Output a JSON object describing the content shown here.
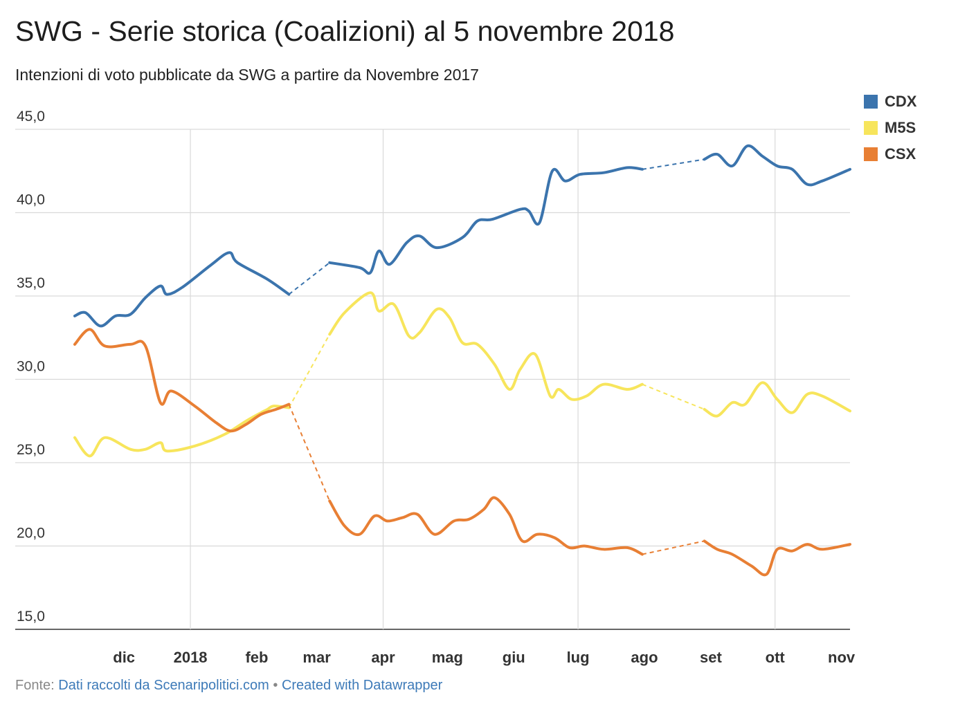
{
  "chart_data": {
    "type": "line",
    "title": "SWG - Serie storica (Coalizioni) al 5 novembre 2018",
    "subtitle": "Intenzioni di voto pubblicate da SWG a partire da Novembre 2017",
    "ylim": [
      15,
      45
    ],
    "yticks": [
      "45,0",
      "40,0",
      "35,0",
      "30,0",
      "25,0",
      "20,0",
      "15,0"
    ],
    "ytick_values": [
      45,
      40,
      35,
      30,
      25,
      20,
      15
    ],
    "xlim": [
      "2017-11-08",
      "2018-11-05"
    ],
    "xticks": [
      {
        "label": "dic",
        "date": "2017-12-01"
      },
      {
        "label": "2018",
        "date": "2018-01-01"
      },
      {
        "label": "feb",
        "date": "2018-02-01"
      },
      {
        "label": "mar",
        "date": "2018-03-01"
      },
      {
        "label": "apr",
        "date": "2018-04-01"
      },
      {
        "label": "mag",
        "date": "2018-05-01"
      },
      {
        "label": "giu",
        "date": "2018-06-01"
      },
      {
        "label": "lug",
        "date": "2018-07-01"
      },
      {
        "label": "ago",
        "date": "2018-08-01"
      },
      {
        "label": "set",
        "date": "2018-09-01"
      },
      {
        "label": "ott",
        "date": "2018-10-01"
      },
      {
        "label": "nov",
        "date": "2018-11-01"
      }
    ],
    "gridlines_x": [
      "2018-01-01",
      "2018-04-01",
      "2018-07-01",
      "2018-10-01"
    ],
    "grid": true,
    "legend_position": "top-right",
    "series": [
      {
        "name": "CDX",
        "color": "#3b74ad",
        "points": [
          [
            "2017-11-08",
            33.8
          ],
          [
            "2017-11-13",
            34.0
          ],
          [
            "2017-11-20",
            33.2
          ],
          [
            "2017-11-27",
            33.8
          ],
          [
            "2017-12-04",
            33.9
          ],
          [
            "2017-12-11",
            34.9
          ],
          [
            "2017-12-18",
            35.6
          ],
          [
            "2017-12-21",
            35.1
          ],
          [
            "2017-12-28",
            35.5
          ],
          [
            "2018-01-10",
            36.8
          ],
          [
            "2018-01-19",
            37.6
          ],
          [
            "2018-01-23",
            37.0
          ],
          [
            "2018-02-06",
            36.0
          ],
          [
            "2018-02-16",
            35.1
          ],
          [
            "2018-03-07",
            37.0
          ],
          [
            "2018-03-21",
            36.7
          ],
          [
            "2018-03-26",
            36.4
          ],
          [
            "2018-03-30",
            37.7
          ],
          [
            "2018-04-04",
            36.9
          ],
          [
            "2018-04-12",
            38.2
          ],
          [
            "2018-04-18",
            38.6
          ],
          [
            "2018-04-26",
            37.9
          ],
          [
            "2018-05-08",
            38.5
          ],
          [
            "2018-05-15",
            39.5
          ],
          [
            "2018-05-22",
            39.6
          ],
          [
            "2018-06-04",
            40.2
          ],
          [
            "2018-06-08",
            40.1
          ],
          [
            "2018-06-13",
            39.4
          ],
          [
            "2018-06-19",
            42.5
          ],
          [
            "2018-06-25",
            41.9
          ],
          [
            "2018-07-02",
            42.3
          ],
          [
            "2018-07-13",
            42.4
          ],
          [
            "2018-07-24",
            42.7
          ],
          [
            "2018-07-31",
            42.6
          ],
          [
            "2018-08-29",
            43.2
          ],
          [
            "2018-09-04",
            43.5
          ],
          [
            "2018-09-11",
            42.8
          ],
          [
            "2018-09-18",
            44.0
          ],
          [
            "2018-09-25",
            43.4
          ],
          [
            "2018-10-02",
            42.8
          ],
          [
            "2018-10-09",
            42.6
          ],
          [
            "2018-10-16",
            41.7
          ],
          [
            "2018-10-23",
            41.9
          ],
          [
            "2018-11-05",
            42.6
          ]
        ],
        "gaps": [
          [
            "2018-02-16",
            "2018-03-07"
          ],
          [
            "2018-07-31",
            "2018-08-29"
          ]
        ]
      },
      {
        "name": "M5S",
        "color": "#f7e55c",
        "points": [
          [
            "2017-11-08",
            26.5
          ],
          [
            "2017-11-15",
            25.4
          ],
          [
            "2017-11-22",
            26.5
          ],
          [
            "2017-12-04",
            25.8
          ],
          [
            "2017-12-11",
            25.8
          ],
          [
            "2017-12-18",
            26.2
          ],
          [
            "2017-12-21",
            25.7
          ],
          [
            "2018-01-03",
            26.0
          ],
          [
            "2018-01-17",
            26.7
          ],
          [
            "2018-01-27",
            27.5
          ],
          [
            "2018-02-03",
            28.0
          ],
          [
            "2018-02-06",
            28.2
          ],
          [
            "2018-02-09",
            28.4
          ],
          [
            "2018-02-16",
            28.3
          ],
          [
            "2018-03-07",
            32.7
          ],
          [
            "2018-03-14",
            34.0
          ],
          [
            "2018-03-26",
            35.2
          ],
          [
            "2018-03-30",
            34.1
          ],
          [
            "2018-04-06",
            34.5
          ],
          [
            "2018-04-13",
            32.6
          ],
          [
            "2018-04-18",
            32.8
          ],
          [
            "2018-04-26",
            34.2
          ],
          [
            "2018-05-02",
            33.7
          ],
          [
            "2018-05-08",
            32.2
          ],
          [
            "2018-05-15",
            32.1
          ],
          [
            "2018-05-23",
            30.9
          ],
          [
            "2018-05-30",
            29.4
          ],
          [
            "2018-06-04",
            30.6
          ],
          [
            "2018-06-11",
            31.5
          ],
          [
            "2018-06-18",
            29.0
          ],
          [
            "2018-06-22",
            29.4
          ],
          [
            "2018-06-28",
            28.8
          ],
          [
            "2018-07-05",
            29.0
          ],
          [
            "2018-07-13",
            29.7
          ],
          [
            "2018-07-24",
            29.4
          ],
          [
            "2018-07-31",
            29.7
          ],
          [
            "2018-08-29",
            28.2
          ],
          [
            "2018-09-04",
            27.8
          ],
          [
            "2018-09-11",
            28.6
          ],
          [
            "2018-09-17",
            28.5
          ],
          [
            "2018-09-25",
            29.8
          ],
          [
            "2018-10-02",
            28.8
          ],
          [
            "2018-10-09",
            28.0
          ],
          [
            "2018-10-16",
            29.1
          ],
          [
            "2018-10-23",
            29.0
          ],
          [
            "2018-11-05",
            28.1
          ]
        ],
        "gaps": [
          [
            "2018-02-16",
            "2018-03-07"
          ],
          [
            "2018-07-31",
            "2018-08-29"
          ]
        ]
      },
      {
        "name": "CSX",
        "color": "#e87f34",
        "points": [
          [
            "2017-11-08",
            32.1
          ],
          [
            "2017-11-15",
            33.0
          ],
          [
            "2017-11-22",
            32.0
          ],
          [
            "2017-12-04",
            32.1
          ],
          [
            "2017-12-11",
            32.0
          ],
          [
            "2017-12-18",
            28.6
          ],
          [
            "2017-12-23",
            29.3
          ],
          [
            "2018-01-03",
            28.4
          ],
          [
            "2018-01-13",
            27.4
          ],
          [
            "2018-01-20",
            26.9
          ],
          [
            "2018-01-27",
            27.3
          ],
          [
            "2018-02-03",
            27.9
          ],
          [
            "2018-02-10",
            28.2
          ],
          [
            "2018-02-16",
            28.5
          ],
          [
            "2018-03-07",
            22.7
          ],
          [
            "2018-03-14",
            21.2
          ],
          [
            "2018-03-21",
            20.7
          ],
          [
            "2018-03-28",
            21.8
          ],
          [
            "2018-04-03",
            21.5
          ],
          [
            "2018-04-10",
            21.7
          ],
          [
            "2018-04-17",
            21.9
          ],
          [
            "2018-04-25",
            20.7
          ],
          [
            "2018-05-04",
            21.5
          ],
          [
            "2018-05-11",
            21.6
          ],
          [
            "2018-05-18",
            22.2
          ],
          [
            "2018-05-23",
            22.9
          ],
          [
            "2018-05-30",
            21.9
          ],
          [
            "2018-06-05",
            20.3
          ],
          [
            "2018-06-12",
            20.7
          ],
          [
            "2018-06-20",
            20.5
          ],
          [
            "2018-06-27",
            19.9
          ],
          [
            "2018-07-04",
            20.0
          ],
          [
            "2018-07-13",
            19.8
          ],
          [
            "2018-07-24",
            19.9
          ],
          [
            "2018-07-31",
            19.5
          ],
          [
            "2018-08-29",
            20.3
          ],
          [
            "2018-09-04",
            19.8
          ],
          [
            "2018-09-11",
            19.5
          ],
          [
            "2018-09-20",
            18.8
          ],
          [
            "2018-09-27",
            18.3
          ],
          [
            "2018-10-02",
            19.8
          ],
          [
            "2018-10-09",
            19.7
          ],
          [
            "2018-10-16",
            20.1
          ],
          [
            "2018-10-23",
            19.8
          ],
          [
            "2018-11-05",
            20.1
          ]
        ],
        "gaps": [
          [
            "2018-02-16",
            "2018-03-07"
          ],
          [
            "2018-07-31",
            "2018-08-29"
          ]
        ]
      }
    ]
  },
  "footer": {
    "prefix": "Fonte: ",
    "source_link": "Dati raccolti da Scenaripolitici.com",
    "separator": " • ",
    "credit_link": "Created with Datawrapper"
  }
}
